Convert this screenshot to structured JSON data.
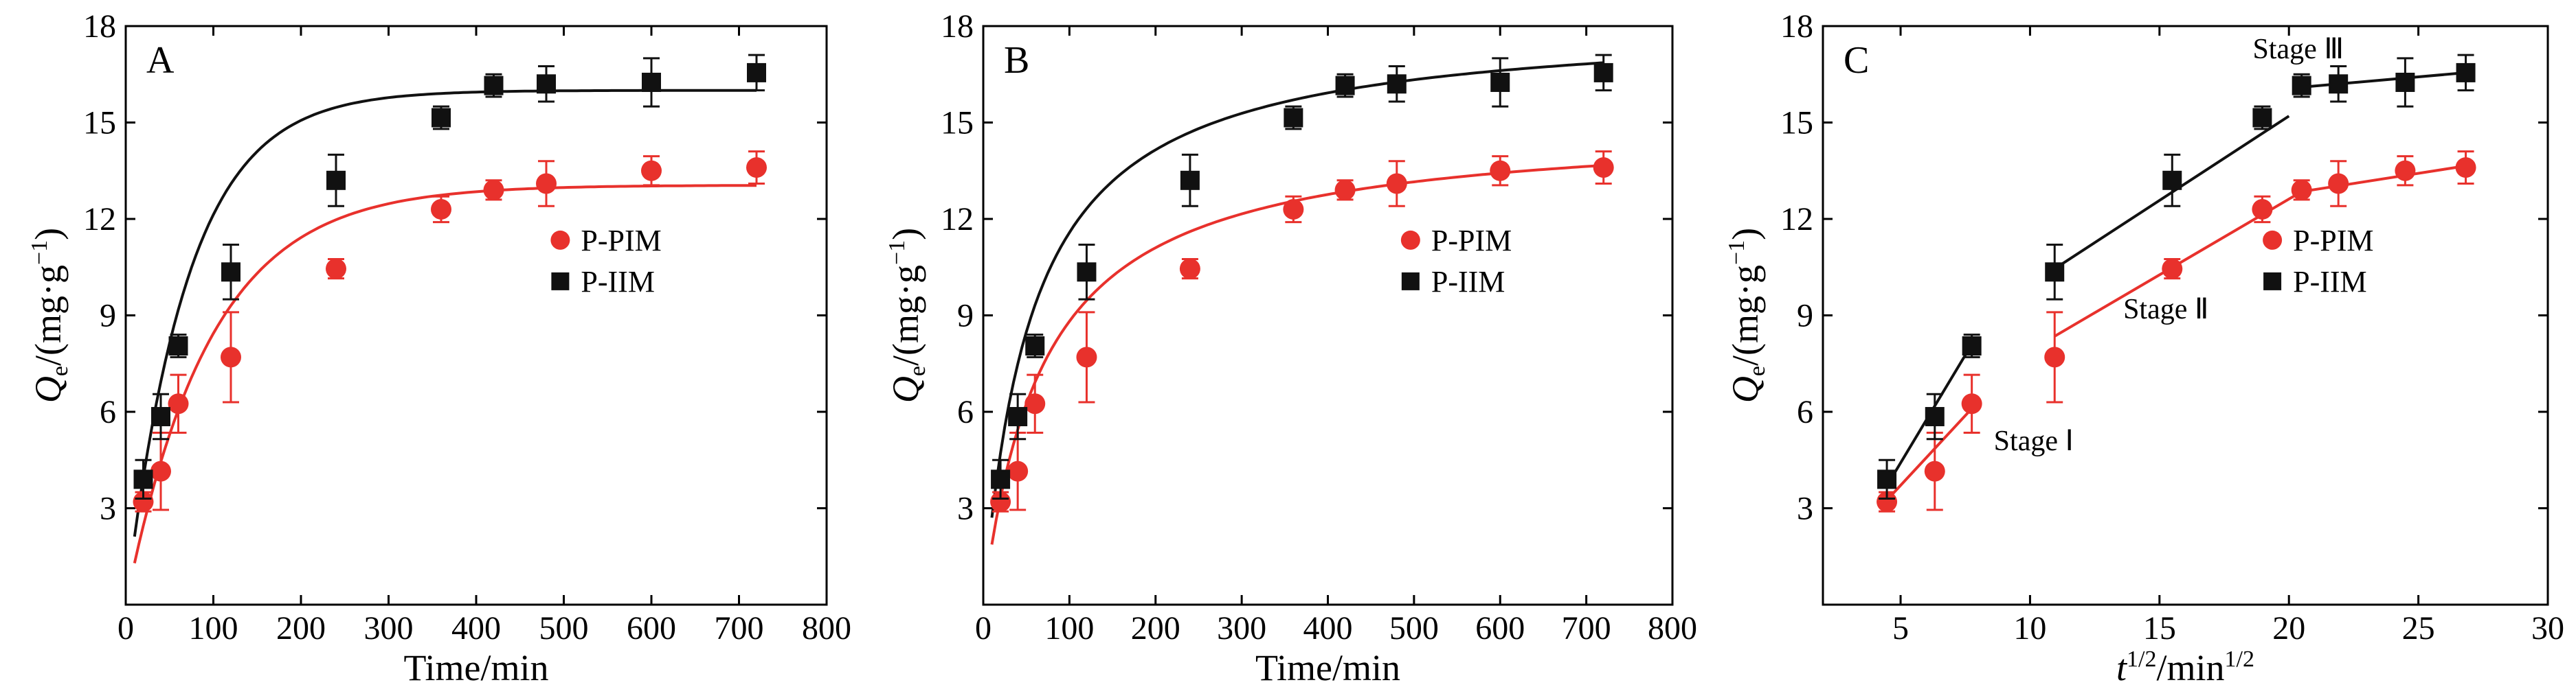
{
  "colors": {
    "P-PIM": "#e8312c",
    "P-IIM": "#111111",
    "axis": "#000000"
  },
  "chart_data": [
    {
      "type": "scatter",
      "panel": "A",
      "title": "",
      "xlabel": "Time/min",
      "ylabel_main": "Q",
      "ylabel_sub": "e",
      "ylabel_rest": "/(mg·g",
      "ylabel_sup": "−1",
      "ylabel_close": ")",
      "xlim": [
        0,
        800
      ],
      "ylim": [
        0,
        18
      ],
      "xticks": [
        0,
        100,
        200,
        300,
        400,
        500,
        600,
        700,
        800
      ],
      "yticks": [
        3,
        6,
        9,
        12,
        15,
        18
      ],
      "legend_position": "center-right",
      "series": [
        {
          "name": "P-PIM",
          "marker": "circle",
          "x": [
            20,
            40,
            60,
            120,
            240,
            360,
            420,
            480,
            600,
            720
          ],
          "y": [
            3.2,
            4.15,
            6.25,
            7.7,
            10.45,
            12.3,
            12.9,
            13.1,
            13.5,
            13.6
          ],
          "err": [
            0.3,
            1.2,
            0.9,
            1.4,
            0.3,
            0.4,
            0.3,
            0.7,
            0.45,
            0.5
          ],
          "fit": {
            "model": "pfo",
            "qe": 13.05,
            "k": 0.0104
          }
        },
        {
          "name": "P-IIM",
          "marker": "square",
          "x": [
            20,
            40,
            60,
            120,
            240,
            360,
            420,
            480,
            600,
            720
          ],
          "y": [
            3.9,
            5.85,
            8.05,
            10.35,
            13.2,
            15.15,
            16.15,
            16.2,
            16.25,
            16.55
          ],
          "err": [
            0.6,
            0.7,
            0.35,
            0.85,
            0.8,
            0.35,
            0.35,
            0.55,
            0.75,
            0.55
          ],
          "fit": {
            "model": "pfo",
            "qe": 16.0,
            "k": 0.0142
          }
        }
      ]
    },
    {
      "type": "scatter",
      "panel": "B",
      "title": "",
      "xlabel": "Time/min",
      "ylabel_main": "Q",
      "ylabel_sub": "e",
      "ylabel_rest": "/(mg·g",
      "ylabel_sup": "−1",
      "ylabel_close": ")",
      "xlim": [
        0,
        800
      ],
      "ylim": [
        0,
        18
      ],
      "xticks": [
        0,
        100,
        200,
        300,
        400,
        500,
        600,
        700,
        800
      ],
      "yticks": [
        3,
        6,
        9,
        12,
        15,
        18
      ],
      "legend_position": "center-right",
      "series": [
        {
          "name": "P-PIM",
          "marker": "circle",
          "x": [
            20,
            40,
            60,
            120,
            240,
            360,
            420,
            480,
            600,
            720
          ],
          "y": [
            3.2,
            4.15,
            6.25,
            7.7,
            10.45,
            12.3,
            12.9,
            13.1,
            13.5,
            13.6
          ],
          "err": [
            0.3,
            1.2,
            0.9,
            1.4,
            0.3,
            0.4,
            0.3,
            0.7,
            0.45,
            0.5
          ],
          "fit": {
            "model": "pso",
            "qe": 15.0,
            "k": 0.00095
          }
        },
        {
          "name": "P-IIM",
          "marker": "square",
          "x": [
            20,
            40,
            60,
            120,
            240,
            360,
            420,
            480,
            600,
            720
          ],
          "y": [
            3.9,
            5.85,
            8.05,
            10.35,
            13.2,
            15.15,
            16.15,
            16.2,
            16.25,
            16.55
          ],
          "err": [
            0.6,
            0.7,
            0.35,
            0.85,
            0.8,
            0.35,
            0.35,
            0.55,
            0.75,
            0.55
          ],
          "fit": {
            "model": "pso",
            "qe": 18.2,
            "k": 0.00096
          }
        }
      ]
    },
    {
      "type": "scatter",
      "panel": "C",
      "title": "",
      "xlabel_main": "t",
      "xlabel_sup": "1/2",
      "xlabel_rest": "/min",
      "xlabel_sup2": "1/2",
      "ylabel_main": "Q",
      "ylabel_sub": "e",
      "ylabel_rest": "/(mg·g",
      "ylabel_sup": "−1",
      "ylabel_close": ")",
      "xlim": [
        2,
        30
      ],
      "ylim": [
        0,
        18
      ],
      "xticks": [
        5,
        10,
        15,
        20,
        25,
        30
      ],
      "yticks": [
        3,
        6,
        9,
        12,
        15,
        18
      ],
      "legend_position": "center-right",
      "annotations": [
        {
          "text": "Stage Ⅰ",
          "x": 8.6,
          "y": 4.8
        },
        {
          "text": "Stage Ⅱ",
          "x": 13.6,
          "y": 8.9
        },
        {
          "text": "Stage Ⅲ",
          "x": 18.6,
          "y": 17.0
        }
      ],
      "series": [
        {
          "name": "P-PIM",
          "marker": "circle",
          "x": [
            4.47,
            6.32,
            7.75,
            10.95,
            15.49,
            18.97,
            20.49,
            21.91,
            24.49,
            26.83
          ],
          "y": [
            3.2,
            4.15,
            6.25,
            7.7,
            10.45,
            12.3,
            12.9,
            13.1,
            13.5,
            13.6
          ],
          "err": [
            0.3,
            1.2,
            0.9,
            1.4,
            0.3,
            0.4,
            0.3,
            0.7,
            0.45,
            0.5
          ],
          "segments": [
            [
              [
                4.47,
                3.25
              ],
              [
                7.75,
                6.1
              ]
            ],
            [
              [
                10.95,
                8.35
              ],
              [
                20.49,
                12.85
              ]
            ],
            [
              [
                20.49,
                12.85
              ],
              [
                26.83,
                13.65
              ]
            ]
          ]
        },
        {
          "name": "P-IIM",
          "marker": "square",
          "x": [
            4.47,
            6.32,
            7.75,
            10.95,
            15.49,
            18.97,
            20.49,
            21.91,
            24.49,
            26.83
          ],
          "y": [
            3.9,
            5.85,
            8.05,
            10.35,
            13.2,
            15.15,
            16.15,
            16.2,
            16.25,
            16.55
          ],
          "err": [
            0.6,
            0.7,
            0.35,
            0.85,
            0.8,
            0.35,
            0.35,
            0.55,
            0.75,
            0.55
          ],
          "segments": [
            [
              [
                4.47,
                3.7
              ],
              [
                7.75,
                8.1
              ]
            ],
            [
              [
                10.95,
                10.45
              ],
              [
                20.0,
                15.2
              ]
            ],
            [
              [
                20.49,
                16.1
              ],
              [
                26.83,
                16.55
              ]
            ]
          ]
        }
      ]
    }
  ]
}
